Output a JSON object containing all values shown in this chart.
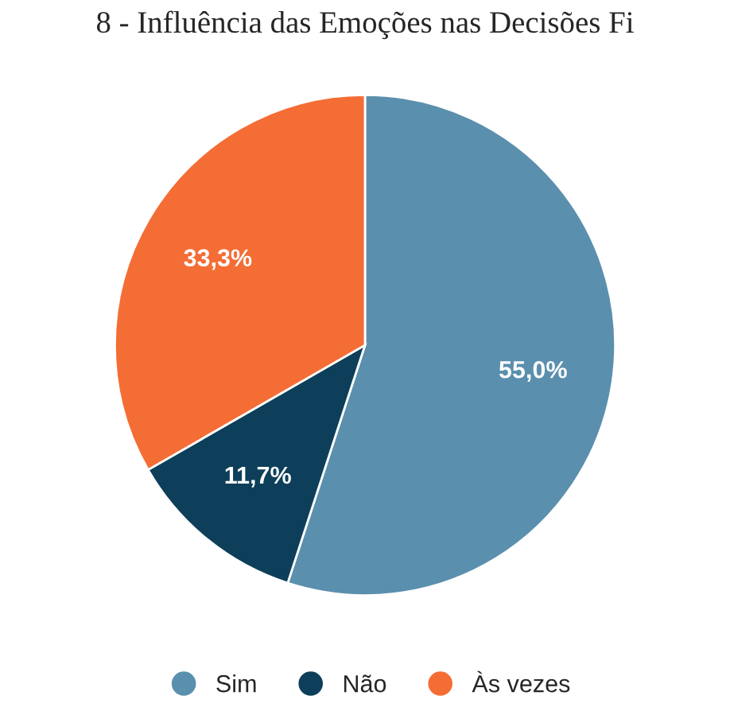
{
  "chart_data": {
    "type": "pie",
    "title": "8 - Influência das Emoções nas Decisões Fi",
    "categories": [
      "Sim",
      "Não",
      "Às vezes"
    ],
    "values": [
      55.0,
      11.7,
      33.3
    ],
    "value_labels": [
      "55,0%",
      "11,7%",
      "33,3%"
    ],
    "colors": [
      "#5b8fae",
      "#0e3f5a",
      "#f46d35"
    ],
    "legend": "bottom"
  }
}
